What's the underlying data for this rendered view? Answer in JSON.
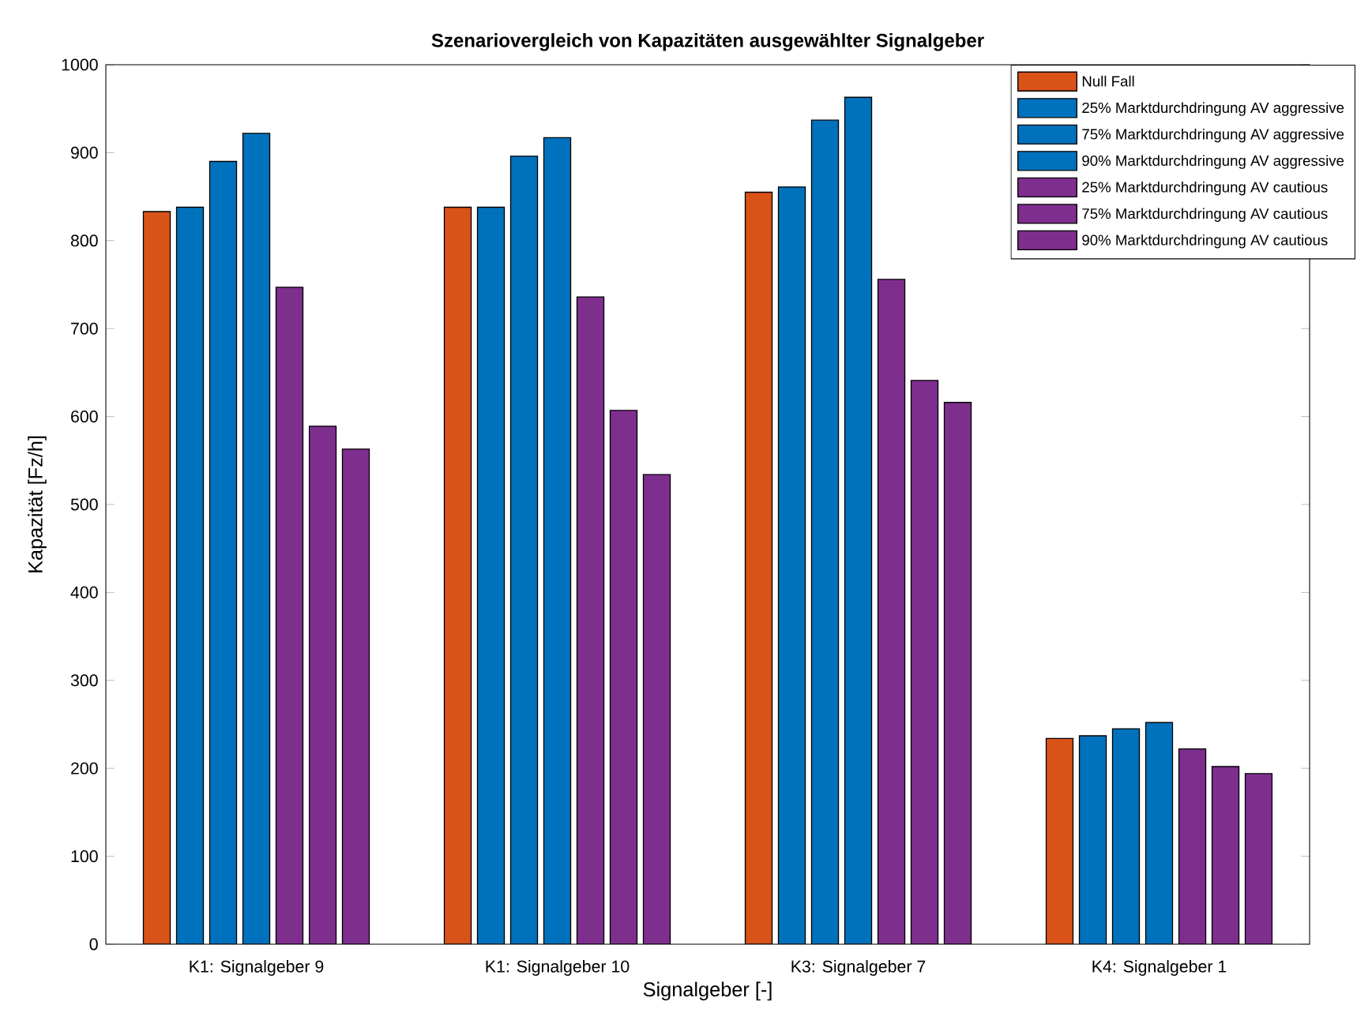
{
  "chart_data": {
    "type": "bar",
    "title": "Szenariovergleich von Kapazitäten ausgewählter Signalgeber",
    "xlabel": "Signalgeber [-]",
    "ylabel": "Kapazität [Fz/h]",
    "categories": [
      "K1: Signalgeber 9",
      "K1: Signalgeber 10",
      "K3: Signalgeber 7",
      "K4: Signalgeber 1"
    ],
    "series": [
      {
        "name": "Null Fall",
        "color": "#d95319",
        "values": [
          833,
          838,
          855,
          234
        ]
      },
      {
        "name": "25% Marktdurchdringung AV aggressive",
        "color": "#0072bd",
        "values": [
          838,
          838,
          861,
          237
        ]
      },
      {
        "name": "75% Marktdurchdringung AV aggressive",
        "color": "#0072bd",
        "values": [
          890,
          896,
          937,
          245
        ]
      },
      {
        "name": "90% Marktdurchdringung AV aggressive",
        "color": "#0072bd",
        "values": [
          922,
          917,
          963,
          252
        ]
      },
      {
        "name": "25% Marktdurchdringung AV cautious",
        "color": "#7e2f8e",
        "values": [
          747,
          736,
          756,
          222
        ]
      },
      {
        "name": "75% Marktdurchdringung AV cautious",
        "color": "#7e2f8e",
        "values": [
          589,
          607,
          641,
          202
        ]
      },
      {
        "name": "90% Marktdurchdringung AV cautious",
        "color": "#7e2f8e",
        "values": [
          563,
          534,
          616,
          194
        ]
      }
    ],
    "ylim": [
      0,
      1000
    ],
    "yticks": [
      0,
      100,
      200,
      300,
      400,
      500,
      600,
      700,
      800,
      900,
      1000
    ],
    "grid": false,
    "legend": "top right"
  }
}
